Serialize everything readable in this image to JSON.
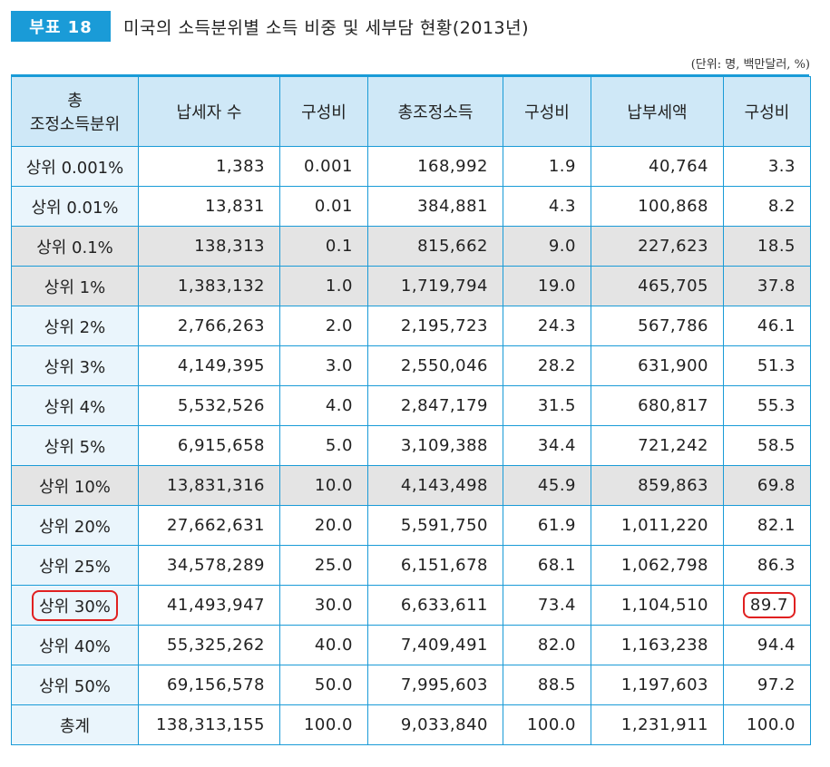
{
  "badge": "부표 18",
  "title": "미국의 소득분위별 소득 비중 및 세부담 현황(2013년)",
  "unit": "(단위: 명, 백만달러, %)",
  "headers": {
    "category_line1": "총",
    "category_line2": "조정소득분위",
    "taxpayers": "납세자 수",
    "share1": "구성비",
    "agi": "총조정소득",
    "share2": "구성비",
    "tax": "납부세액",
    "share3": "구성비"
  },
  "rows": [
    {
      "cat": "상위 0.001%",
      "taxpayers": "1,383",
      "s1": "0.001",
      "agi": "168,992",
      "s2": "1.9",
      "tax": "40,764",
      "s3": "3.3"
    },
    {
      "cat": "상위 0.01%",
      "taxpayers": "13,831",
      "s1": "0.01",
      "agi": "384,881",
      "s2": "4.3",
      "tax": "100,868",
      "s3": "8.2"
    },
    {
      "cat": "상위 0.1%",
      "taxpayers": "138,313",
      "s1": "0.1",
      "agi": "815,662",
      "s2": "9.0",
      "tax": "227,623",
      "s3": "18.5"
    },
    {
      "cat": "상위 1%",
      "taxpayers": "1,383,132",
      "s1": "1.0",
      "agi": "1,719,794",
      "s2": "19.0",
      "tax": "465,705",
      "s3": "37.8"
    },
    {
      "cat": "상위 2%",
      "taxpayers": "2,766,263",
      "s1": "2.0",
      "agi": "2,195,723",
      "s2": "24.3",
      "tax": "567,786",
      "s3": "46.1"
    },
    {
      "cat": "상위 3%",
      "taxpayers": "4,149,395",
      "s1": "3.0",
      "agi": "2,550,046",
      "s2": "28.2",
      "tax": "631,900",
      "s3": "51.3"
    },
    {
      "cat": "상위 4%",
      "taxpayers": "5,532,526",
      "s1": "4.0",
      "agi": "2,847,179",
      "s2": "31.5",
      "tax": "680,817",
      "s3": "55.3"
    },
    {
      "cat": "상위 5%",
      "taxpayers": "6,915,658",
      "s1": "5.0",
      "agi": "3,109,388",
      "s2": "34.4",
      "tax": "721,242",
      "s3": "58.5"
    },
    {
      "cat": "상위 10%",
      "taxpayers": "13,831,316",
      "s1": "10.0",
      "agi": "4,143,498",
      "s2": "45.9",
      "tax": "859,863",
      "s3": "69.8"
    },
    {
      "cat": "상위 20%",
      "taxpayers": "27,662,631",
      "s1": "20.0",
      "agi": "5,591,750",
      "s2": "61.9",
      "tax": "1,011,220",
      "s3": "82.1"
    },
    {
      "cat": "상위 25%",
      "taxpayers": "34,578,289",
      "s1": "25.0",
      "agi": "6,151,678",
      "s2": "68.1",
      "tax": "1,062,798",
      "s3": "86.3"
    },
    {
      "cat": "상위 30%",
      "taxpayers": "41,493,947",
      "s1": "30.0",
      "agi": "6,633,611",
      "s2": "73.4",
      "tax": "1,104,510",
      "s3": "89.7"
    },
    {
      "cat": "상위 40%",
      "taxpayers": "55,325,262",
      "s1": "40.0",
      "agi": "7,409,491",
      "s2": "82.0",
      "tax": "1,163,238",
      "s3": "94.4"
    },
    {
      "cat": "상위 50%",
      "taxpayers": "69,156,578",
      "s1": "50.0",
      "agi": "7,995,603",
      "s2": "88.5",
      "tax": "1,197,603",
      "s3": "97.2"
    },
    {
      "cat": "총계",
      "taxpayers": "138,313,155",
      "s1": "100.0",
      "agi": "9,033,840",
      "s2": "100.0",
      "tax": "1,231,911",
      "s3": "100.0"
    }
  ]
}
